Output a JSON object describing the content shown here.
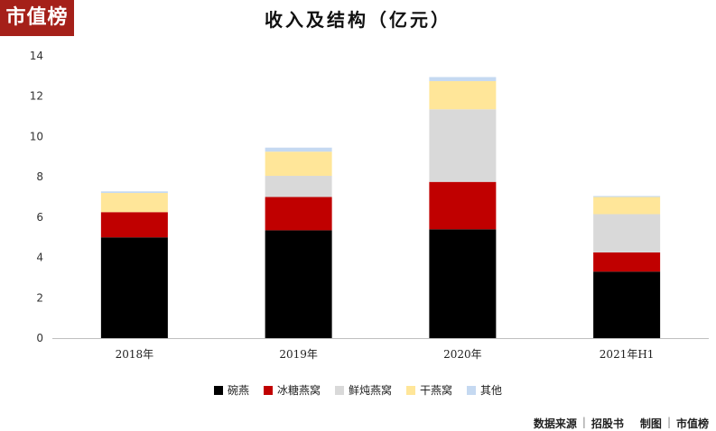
{
  "logo_text": "市值榜",
  "chart_data": {
    "type": "bar",
    "stacked": true,
    "title": "收入及结构（亿元）",
    "categories": [
      "2018年",
      "2019年",
      "2020年",
      "2021年H1"
    ],
    "ylim": [
      0,
      14
    ],
    "yticks": [
      0,
      2,
      4,
      6,
      8,
      10,
      12,
      14
    ],
    "grid": false,
    "legend_position": "bottom",
    "series": [
      {
        "name": "碗燕",
        "color": "#000000",
        "values": [
          5.0,
          5.35,
          5.4,
          3.3
        ]
      },
      {
        "name": "冰糖燕窝",
        "color": "#c00000",
        "values": [
          1.25,
          1.65,
          2.35,
          0.95
        ]
      },
      {
        "name": "鲜炖燕窝",
        "color": "#d9d9d9",
        "values": [
          0.0,
          1.05,
          3.6,
          1.9
        ]
      },
      {
        "name": "干燕窝",
        "color": "#ffe699",
        "values": [
          0.95,
          1.2,
          1.4,
          0.85
        ]
      },
      {
        "name": "其他",
        "color": "#c5d9f1",
        "values": [
          0.08,
          0.2,
          0.2,
          0.05
        ]
      }
    ]
  },
  "source": {
    "label": "数据来源",
    "source_name": "招股书",
    "made_label": "制图",
    "maker": "市值榜"
  }
}
